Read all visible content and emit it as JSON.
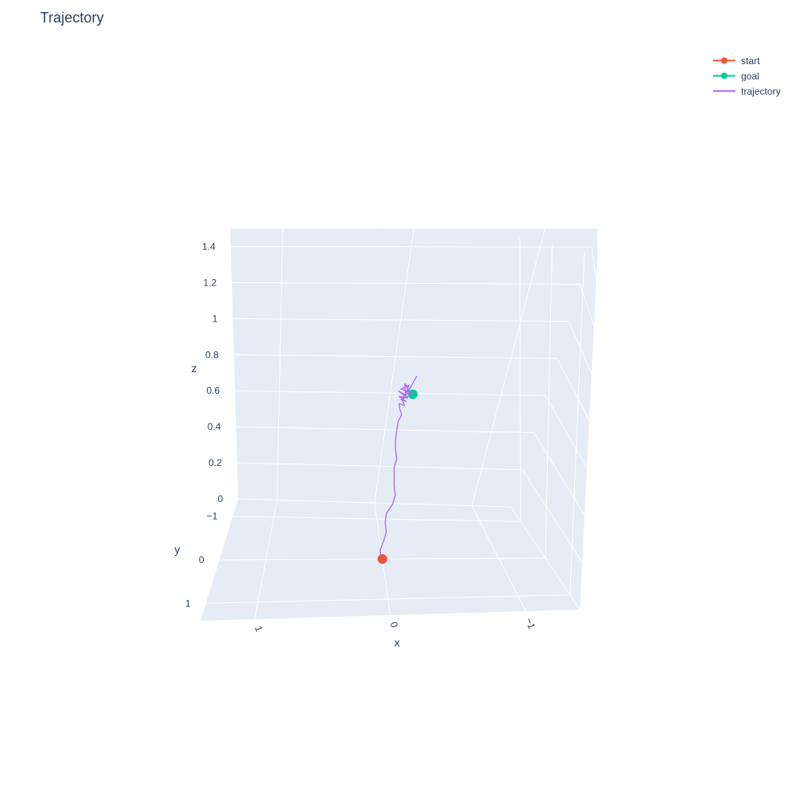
{
  "chart_data": {
    "type": "scatter3d",
    "title": "Trajectory",
    "axes": {
      "x": {
        "label": "x",
        "range": [
          1.4,
          -1.4
        ],
        "ticks": [
          "1",
          "0",
          "−1"
        ]
      },
      "y": {
        "label": "y",
        "range": [
          -1.4,
          1.4
        ],
        "ticks": [
          "−1",
          "0",
          "1"
        ]
      },
      "z": {
        "label": "z",
        "range": [
          0,
          1.5
        ],
        "ticks": [
          "0",
          "0.2",
          "0.4",
          "0.6",
          "0.8",
          "1",
          "1.2",
          "1.4"
        ]
      }
    },
    "background": "#e5ecf6",
    "series": [
      {
        "name": "start",
        "mode": "lines+markers",
        "color": "#ef553b",
        "points": [
          [
            0.0,
            0.0,
            0.0
          ]
        ]
      },
      {
        "name": "goal",
        "mode": "lines+markers",
        "color": "#00cc96",
        "points": [
          [
            -0.05,
            0.0,
            0.9
          ]
        ]
      },
      {
        "name": "trajectory",
        "mode": "lines",
        "color": "#ab63fa",
        "points": [
          [
            0.02,
            0.0,
            0.02
          ],
          [
            0.03,
            0.0,
            0.05
          ],
          [
            0.01,
            0.0,
            0.1
          ],
          [
            0.0,
            0.0,
            0.15
          ],
          [
            0.02,
            0.0,
            0.2
          ],
          [
            0.02,
            0.0,
            0.25
          ],
          [
            -0.02,
            0.0,
            0.3
          ],
          [
            -0.03,
            0.0,
            0.35
          ],
          [
            -0.01,
            0.0,
            0.4
          ],
          [
            0.0,
            0.0,
            0.45
          ],
          [
            0.01,
            0.0,
            0.5
          ],
          [
            0.0,
            0.0,
            0.55
          ],
          [
            0.02,
            0.0,
            0.6
          ],
          [
            0.03,
            0.0,
            0.65
          ],
          [
            0.03,
            0.0,
            0.7
          ],
          [
            0.03,
            0.0,
            0.75
          ],
          [
            0.01,
            0.0,
            0.79
          ],
          [
            0.03,
            0.0,
            0.82
          ],
          [
            0.04,
            0.0,
            0.85
          ],
          [
            0.0,
            0.0,
            0.84
          ],
          [
            0.02,
            0.0,
            0.87
          ],
          [
            -0.01,
            0.0,
            0.86
          ],
          [
            0.05,
            0.0,
            0.89
          ],
          [
            -0.02,
            0.0,
            0.88
          ],
          [
            0.06,
            0.0,
            0.92
          ],
          [
            0.01,
            0.0,
            0.9
          ],
          [
            -0.03,
            0.0,
            0.91
          ],
          [
            0.04,
            0.0,
            0.93
          ],
          [
            -0.01,
            0.0,
            0.95
          ],
          [
            0.0,
            0.0,
            0.89
          ],
          [
            0.02,
            0.0,
            0.96
          ],
          [
            -0.04,
            0.0,
            0.9
          ],
          [
            0.03,
            0.0,
            0.87
          ],
          [
            -0.02,
            0.0,
            0.93
          ],
          [
            -0.06,
            0.0,
            1.0
          ]
        ]
      }
    ]
  }
}
